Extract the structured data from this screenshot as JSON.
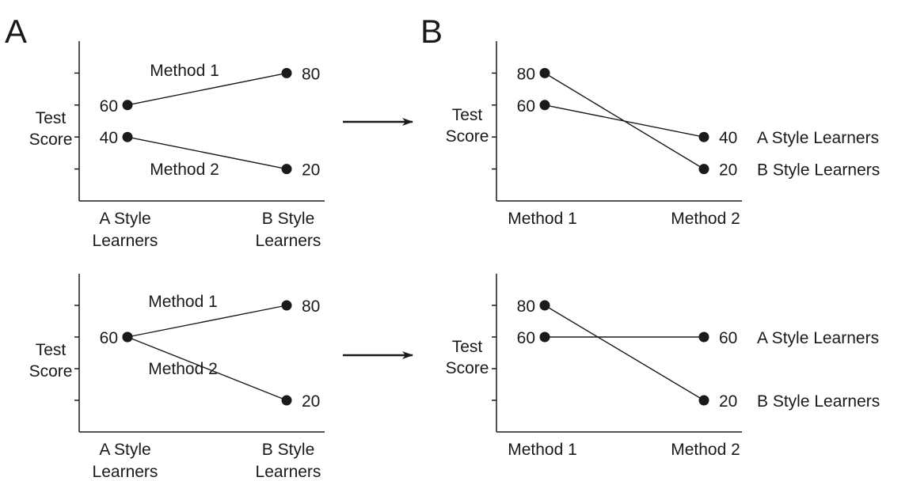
{
  "panel_labels": {
    "left": "A",
    "right": "B"
  },
  "colors": {
    "ink": "#1a1a1a",
    "background": "#ffffff"
  },
  "chart_data": [
    {
      "type": "line",
      "panel": "A",
      "row": "top",
      "ylabel": "Test Score",
      "categories": [
        "A Style\nLearners",
        "B Style\nLearners"
      ],
      "ylim": [
        0,
        100
      ],
      "series": [
        {
          "name": "Method 1",
          "values": [
            60,
            80
          ],
          "labels": [
            "60",
            "80"
          ]
        },
        {
          "name": "Method 2",
          "values": [
            40,
            20
          ],
          "labels": [
            "40",
            "20"
          ]
        }
      ]
    },
    {
      "type": "line",
      "panel": "B",
      "row": "top",
      "ylabel": "Test Score",
      "categories": [
        "Method 1",
        "Method 2"
      ],
      "ylim": [
        0,
        100
      ],
      "series": [
        {
          "name": "A Style Learners",
          "values": [
            60,
            40
          ],
          "labels": [
            "60",
            "40"
          ]
        },
        {
          "name": "B Style Learners",
          "values": [
            80,
            20
          ],
          "labels": [
            "80",
            "20"
          ]
        }
      ]
    },
    {
      "type": "line",
      "panel": "A",
      "row": "bottom",
      "ylabel": "Test Score",
      "categories": [
        "A Style\nLearners",
        "B Style\nLearners"
      ],
      "ylim": [
        0,
        100
      ],
      "series": [
        {
          "name": "Method 1",
          "values": [
            60,
            80
          ],
          "labels": [
            "60",
            "80"
          ]
        },
        {
          "name": "Method 2",
          "values": [
            60,
            20
          ],
          "labels": [
            "",
            "20"
          ]
        }
      ]
    },
    {
      "type": "line",
      "panel": "B",
      "row": "bottom",
      "ylabel": "Test Score",
      "categories": [
        "Method 1",
        "Method 2"
      ],
      "ylim": [
        0,
        100
      ],
      "series": [
        {
          "name": "A Style Learners",
          "values": [
            60,
            60
          ],
          "labels": [
            "60",
            "60"
          ]
        },
        {
          "name": "B Style Learners",
          "values": [
            80,
            20
          ],
          "labels": [
            "80",
            "20"
          ]
        }
      ]
    }
  ]
}
